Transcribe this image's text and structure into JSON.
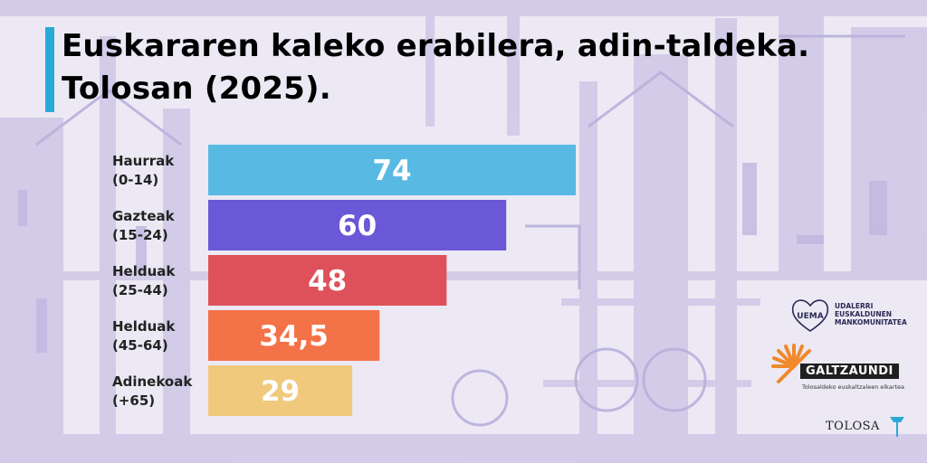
{
  "title_lines": [
    "Euskararen kaleko erabilera, adin-taldeka.",
    "Tolosan (2025)."
  ],
  "chart_data": {
    "type": "bar",
    "orientation": "horizontal",
    "title": "Euskararen kaleko erabilera, adin-taldeka. Tolosan (2025).",
    "categories": [
      {
        "name": "Haurrak",
        "range": "(0-14)"
      },
      {
        "name": "Gazteak",
        "range": "(15-24)"
      },
      {
        "name": "Helduak",
        "range": "(25-44)"
      },
      {
        "name": "Helduak",
        "range": "(45-64)"
      },
      {
        "name": "Adinekoak",
        "range": "(+65)"
      }
    ],
    "values": [
      74,
      60,
      48,
      34.5,
      29
    ],
    "value_labels": [
      "74",
      "60",
      "48",
      "34,5",
      "29"
    ],
    "colors": [
      "#58b9e3",
      "#6a58d6",
      "#df515a",
      "#f47247",
      "#f0c97d"
    ],
    "xlim": [
      0,
      74
    ],
    "xlabel": "",
    "ylabel": "",
    "grid": false,
    "legend": "none"
  },
  "logos": {
    "uema_mark": "UEMA",
    "uema_lines": [
      "UDALERRI",
      "EUSKALDUNEN",
      "MANKOMUNITATEA"
    ],
    "galtzaundi_name": "GALTZAUNDI",
    "galtzaundi_sub": "Tolosaldeko euskaltzaleen elkartea",
    "tolosa": "TOLOSA"
  }
}
